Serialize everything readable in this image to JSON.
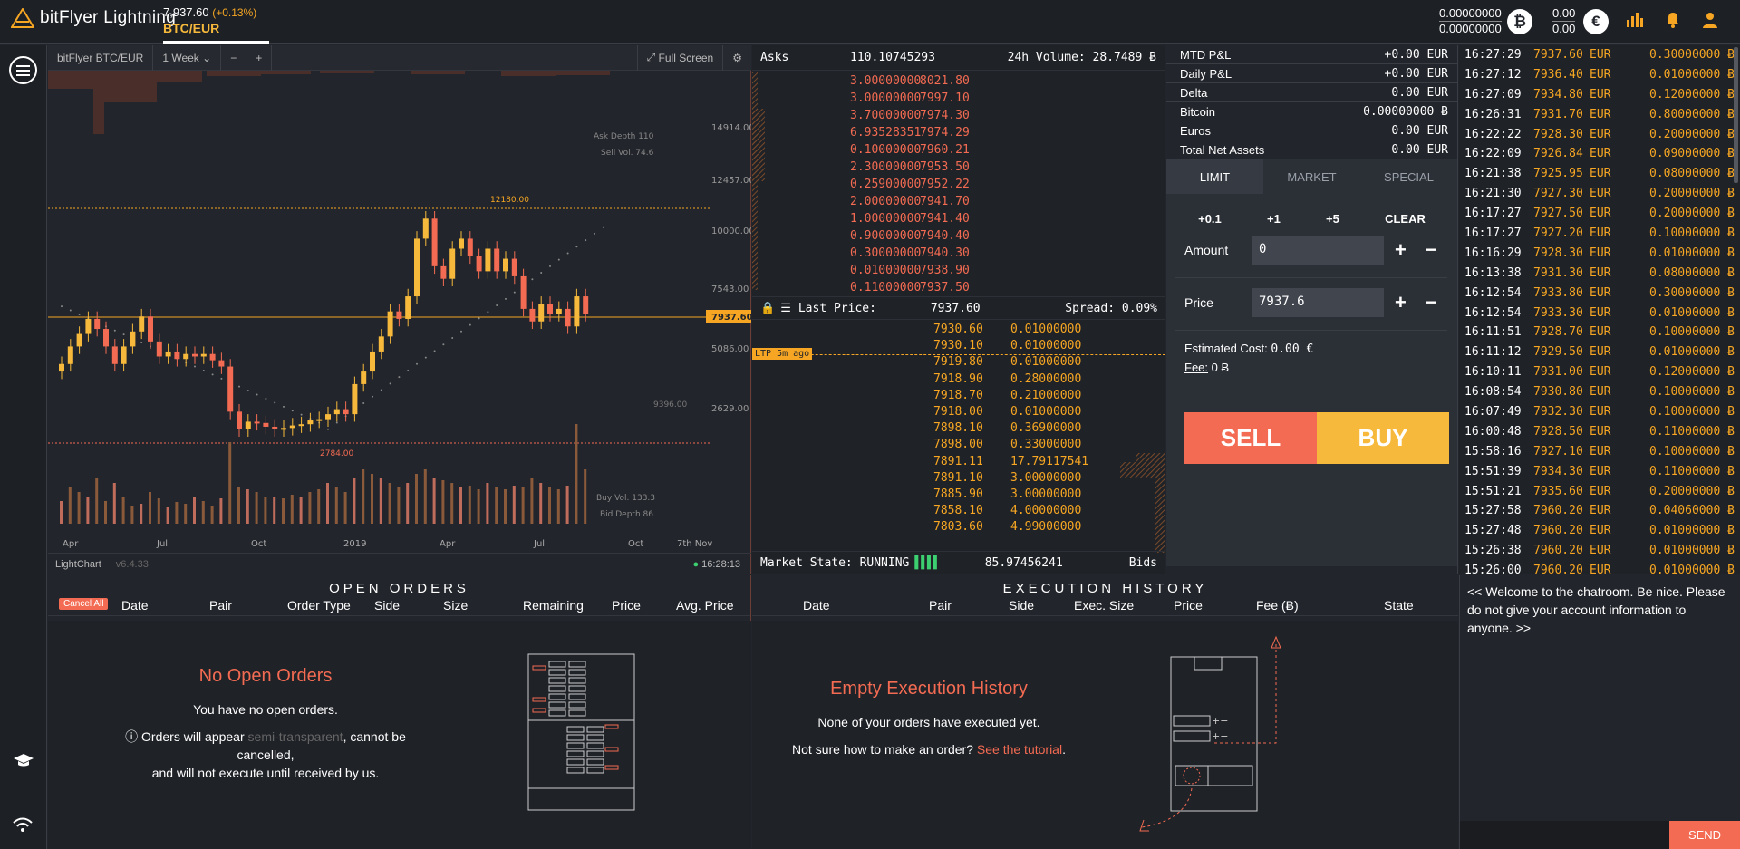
{
  "topbar": {
    "brand": "bitFlyer Lightning",
    "ticker_price": "7,937.60",
    "ticker_change": "(+0.13%)",
    "pair": "BTC/EUR",
    "btc_bal_1": "0.00000000",
    "btc_bal_2": "0.00000000",
    "eur_bal_1": "0.00",
    "eur_bal_2": "0.00"
  },
  "chart": {
    "market": "bitFlyer BTC/EUR",
    "interval": "1 Week",
    "minus": "−",
    "plus": "+",
    "fullscreen": "Full Screen",
    "footer_name": "LightChart",
    "footer_ver": "v6.4.33",
    "clock": "16:28:13",
    "price_labels": [
      "14914.00",
      "12457.00",
      "10000.00",
      "7543.00",
      "5086.00",
      "2629.00"
    ],
    "last_tag": "7937.60",
    "high_label": "12180.00",
    "low_label": "2784.00",
    "ma_label": "9396.00",
    "ask_depth": "Ask Depth 110",
    "sell_vol": "Sell Vol. 74.6",
    "buy_vol": "Buy Vol. 133.3",
    "bid_depth": "Bid Depth 86",
    "x_labels": [
      "Apr",
      "Jul",
      "Oct",
      "2019",
      "Apr",
      "Jul",
      "Oct",
      "7th Nov"
    ]
  },
  "book": {
    "asks_label": "Asks",
    "asks_total": "110.10745293",
    "vol_label": "24h Volume: 28.7489 Ƀ",
    "asks": [
      {
        "s": "3.00000000",
        "p": "8021.80"
      },
      {
        "s": "3.00000000",
        "p": "7997.10"
      },
      {
        "s": "3.70000000",
        "p": "7974.30"
      },
      {
        "s": "6.93528351",
        "p": "7974.29"
      },
      {
        "s": "0.10000000",
        "p": "7960.21"
      },
      {
        "s": "2.30000000",
        "p": "7953.50"
      },
      {
        "s": "0.25900000",
        "p": "7952.22"
      },
      {
        "s": "2.00000000",
        "p": "7941.70"
      },
      {
        "s": "1.00000000",
        "p": "7941.40"
      },
      {
        "s": "0.90000000",
        "p": "7940.40"
      },
      {
        "s": "0.30000000",
        "p": "7940.30"
      },
      {
        "s": "0.01000000",
        "p": "7938.90"
      },
      {
        "s": "0.11000000",
        "p": "7937.50"
      }
    ],
    "last_price_label": "Last Price:",
    "last_price": "7937.60",
    "spread": "Spread: 0.09%",
    "ltp_tag": "LTP 5m ago",
    "bids": [
      {
        "p": "7930.60",
        "s": "0.01000000"
      },
      {
        "p": "7930.10",
        "s": "0.01000000"
      },
      {
        "p": "7919.80",
        "s": "0.01000000"
      },
      {
        "p": "7918.90",
        "s": "0.28000000"
      },
      {
        "p": "7918.70",
        "s": "0.21000000"
      },
      {
        "p": "7918.00",
        "s": "0.01000000"
      },
      {
        "p": "7898.10",
        "s": "0.36900000"
      },
      {
        "p": "7898.00",
        "s": "0.33000000"
      },
      {
        "p": "7891.11",
        "s": "17.79117541"
      },
      {
        "p": "7891.10",
        "s": "3.00000000"
      },
      {
        "p": "7885.90",
        "s": "3.00000000"
      },
      {
        "p": "7858.10",
        "s": "4.00000000"
      },
      {
        "p": "7803.60",
        "s": "4.99000000"
      }
    ],
    "market_state": "Market State: RUNNING",
    "bids_total": "85.97456241",
    "bids_label": "Bids"
  },
  "account": {
    "rows": [
      {
        "k": "MTD P&L",
        "v": "+0.00 EUR"
      },
      {
        "k": "Daily P&L",
        "v": "+0.00 EUR"
      },
      {
        "k": "Delta",
        "v": "0.00 EUR"
      },
      {
        "k": "Bitcoin",
        "v": "0.00000000 Ƀ"
      },
      {
        "k": "Euros",
        "v": "0.00 EUR"
      },
      {
        "k": "Total Net Assets",
        "v": "0.00 EUR"
      }
    ],
    "tabs": [
      "LIMIT",
      "MARKET",
      "SPECIAL"
    ],
    "quick": [
      "+0.1",
      "+1",
      "+5",
      "CLEAR"
    ],
    "amount_label": "Amount",
    "amount_value": "0",
    "price_label": "Price",
    "price_value": "7937.6",
    "est_cost": "Estimated Cost:",
    "est_cost_val": "0.00 €",
    "fee": "Fee:",
    "fee_val": "0 Ƀ",
    "sell": "SELL",
    "buy": "BUY"
  },
  "trades": [
    [
      "16:27:29",
      "7937.60",
      "EUR",
      "0.30000000 Ƀ"
    ],
    [
      "16:27:12",
      "7936.40",
      "EUR",
      "0.01000000 Ƀ"
    ],
    [
      "16:27:09",
      "7934.80",
      "EUR",
      "0.12000000 Ƀ"
    ],
    [
      "16:26:31",
      "7931.70",
      "EUR",
      "0.80000000 Ƀ"
    ],
    [
      "16:22:22",
      "7928.30",
      "EUR",
      "0.20000000 Ƀ"
    ],
    [
      "16:22:09",
      "7926.84",
      "EUR",
      "0.09000000 Ƀ"
    ],
    [
      "16:21:38",
      "7925.95",
      "EUR",
      "0.08000000 Ƀ"
    ],
    [
      "16:21:30",
      "7927.30",
      "EUR",
      "0.20000000 Ƀ"
    ],
    [
      "16:17:27",
      "7927.50",
      "EUR",
      "0.20000000 Ƀ"
    ],
    [
      "16:17:27",
      "7927.20",
      "EUR",
      "0.10000000 Ƀ"
    ],
    [
      "16:16:29",
      "7928.30",
      "EUR",
      "0.01000000 Ƀ"
    ],
    [
      "16:13:38",
      "7931.30",
      "EUR",
      "0.08000000 Ƀ"
    ],
    [
      "16:12:54",
      "7933.80",
      "EUR",
      "0.30000000 Ƀ"
    ],
    [
      "16:12:54",
      "7933.30",
      "EUR",
      "0.01000000 Ƀ"
    ],
    [
      "16:11:51",
      "7928.70",
      "EUR",
      "0.10000000 Ƀ"
    ],
    [
      "16:11:12",
      "7929.50",
      "EUR",
      "0.01000000 Ƀ"
    ],
    [
      "16:10:11",
      "7931.00",
      "EUR",
      "0.12000000 Ƀ"
    ],
    [
      "16:08:54",
      "7930.80",
      "EUR",
      "0.10000000 Ƀ"
    ],
    [
      "16:07:49",
      "7932.30",
      "EUR",
      "0.10000000 Ƀ"
    ],
    [
      "16:00:48",
      "7928.50",
      "EUR",
      "0.11000000 Ƀ"
    ],
    [
      "15:58:16",
      "7927.10",
      "EUR",
      "0.10000000 Ƀ"
    ],
    [
      "15:51:39",
      "7934.30",
      "EUR",
      "0.11000000 Ƀ"
    ],
    [
      "15:51:21",
      "7935.60",
      "EUR",
      "0.20000000 Ƀ"
    ],
    [
      "15:27:58",
      "7960.20",
      "EUR",
      "0.04060000 Ƀ"
    ],
    [
      "15:27:48",
      "7960.20",
      "EUR",
      "0.01000000 Ƀ"
    ],
    [
      "15:26:38",
      "7960.20",
      "EUR",
      "0.01000000 Ƀ"
    ],
    [
      "15:26:00",
      "7960.20",
      "EUR",
      "0.01000000 Ƀ"
    ]
  ],
  "orders": {
    "title": "OPEN ORDERS",
    "cancel_all": "Cancel All",
    "cols": [
      "Date",
      "Pair",
      "Order Type",
      "Side",
      "Size",
      "Remaining",
      "Price",
      "Avg. Price"
    ],
    "empty_title": "No Open Orders",
    "empty_line": "You have no open orders.",
    "note_a": "Orders will appear",
    "note_b": "semi-transparent",
    "note_c": ", cannot be cancelled,",
    "note_d": "and will not execute until received by us."
  },
  "exec": {
    "title": "EXECUTION HISTORY",
    "cols": [
      "Date",
      "Pair",
      "Side",
      "Exec. Size",
      "Price",
      "Fee (Ƀ)",
      "State"
    ],
    "empty_title": "Empty Execution History",
    "line1": "None of your orders have executed yet.",
    "line2a": "Not sure how to make an order?",
    "line2b": "See the tutorial"
  },
  "chat": {
    "message": "<< Welcome to the chatroom. Be nice. Please do not give your account information to anyone. >>",
    "send": "SEND"
  }
}
